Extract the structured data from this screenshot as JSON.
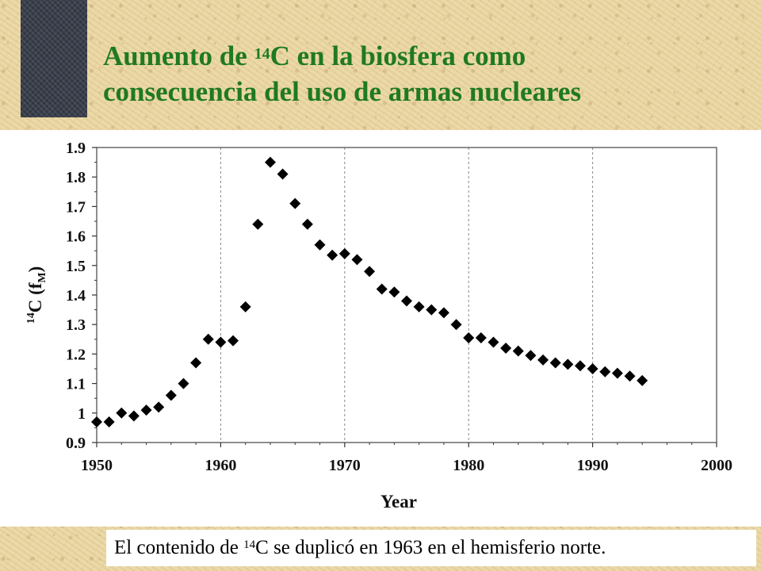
{
  "slide": {
    "title_part1": "Aumento de ",
    "title_sup": "14",
    "title_part2": "C en la biosfera como",
    "title_line2": "consecuencia del uso de armas nucleares",
    "caption_part1": "El contenido de ",
    "caption_sup": "14",
    "caption_part2": "C se duplicó en 1963 en el hemisferio norte."
  },
  "chart_data": {
    "type": "scatter",
    "title": "",
    "xlabel": "Year",
    "ylabel_main": "C (f",
    "ylabel_sup": "14",
    "ylabel_sub": "M",
    "ylabel_close": ")",
    "xlim": [
      1950,
      2000
    ],
    "ylim": [
      0.9,
      1.9
    ],
    "x_ticks": [
      1950,
      1960,
      1970,
      1980,
      1990,
      2000
    ],
    "y_ticks": [
      "0.9",
      "1",
      "1.1",
      "1.2",
      "1.3",
      "1.4",
      "1.5",
      "1.6",
      "1.7",
      "1.8",
      "1.9"
    ],
    "grid": "vertical dashed at major x ticks",
    "marker": "diamond",
    "marker_color": "#000000",
    "points": [
      [
        1950,
        0.97
      ],
      [
        1951,
        0.97
      ],
      [
        1952,
        1.0
      ],
      [
        1953,
        0.99
      ],
      [
        1954,
        1.01
      ],
      [
        1955,
        1.02
      ],
      [
        1956,
        1.06
      ],
      [
        1957,
        1.1
      ],
      [
        1958,
        1.17
      ],
      [
        1959,
        1.25
      ],
      [
        1960,
        1.24
      ],
      [
        1961,
        1.245
      ],
      [
        1962,
        1.36
      ],
      [
        1963,
        1.64
      ],
      [
        1964,
        1.85
      ],
      [
        1965,
        1.81
      ],
      [
        1966,
        1.71
      ],
      [
        1967,
        1.64
      ],
      [
        1968,
        1.57
      ],
      [
        1969,
        1.535
      ],
      [
        1970,
        1.54
      ],
      [
        1971,
        1.52
      ],
      [
        1972,
        1.48
      ],
      [
        1973,
        1.42
      ],
      [
        1974,
        1.41
      ],
      [
        1975,
        1.38
      ],
      [
        1976,
        1.36
      ],
      [
        1977,
        1.35
      ],
      [
        1978,
        1.34
      ],
      [
        1979,
        1.3
      ],
      [
        1980,
        1.255
      ],
      [
        1981,
        1.255
      ],
      [
        1982,
        1.24
      ],
      [
        1983,
        1.22
      ],
      [
        1984,
        1.21
      ],
      [
        1985,
        1.195
      ],
      [
        1986,
        1.18
      ],
      [
        1987,
        1.17
      ],
      [
        1988,
        1.165
      ],
      [
        1989,
        1.16
      ],
      [
        1990,
        1.15
      ],
      [
        1991,
        1.14
      ],
      [
        1992,
        1.135
      ],
      [
        1993,
        1.125
      ],
      [
        1994,
        1.11
      ]
    ]
  }
}
